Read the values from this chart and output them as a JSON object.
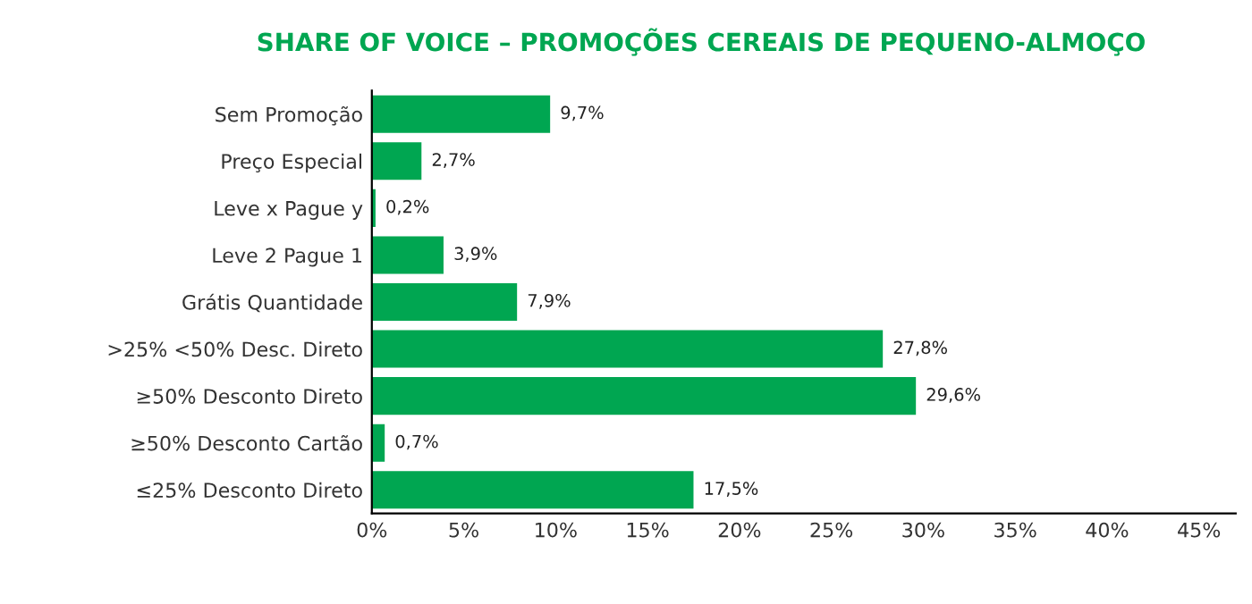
{
  "chart_data": {
    "type": "bar",
    "orientation": "horizontal",
    "title": "SHARE OF VOICE – PROMOÇÕES CEREAIS DE PEQUENO-ALMOÇO",
    "categories": [
      "Sem Promoção",
      "Preço Especial",
      "Leve x Pague y",
      "Leve 2 Pague 1",
      "Grátis Quantidade",
      ">25% <50% Desc. Direto",
      "≥50% Desconto Direto",
      "≥50% Desconto Cartão",
      "≤25% Desconto Direto"
    ],
    "values": [
      9.7,
      2.7,
      0.2,
      3.9,
      7.9,
      27.8,
      29.6,
      0.7,
      17.5
    ],
    "value_labels": [
      "9,7%",
      "2,7%",
      "0,2%",
      "3,9%",
      "7,9%",
      "27,8%",
      "29,6%",
      "0,7%",
      "17,5%"
    ],
    "color": "#00a651",
    "xlim": [
      0,
      47
    ],
    "xticks": [
      {
        "value": 0,
        "label": "0%"
      },
      {
        "value": 5,
        "label": "5%"
      },
      {
        "value": 10,
        "label": "10%"
      },
      {
        "value": 15,
        "label": "15%"
      },
      {
        "value": 20,
        "label": "20%"
      },
      {
        "value": 25,
        "label": "25%"
      },
      {
        "value": 30,
        "label": "30%"
      },
      {
        "value": 35,
        "label": "35%"
      },
      {
        "value": 40,
        "label": "40%"
      },
      {
        "value": 45,
        "label": "45%"
      }
    ],
    "grid": false,
    "legend": false
  }
}
